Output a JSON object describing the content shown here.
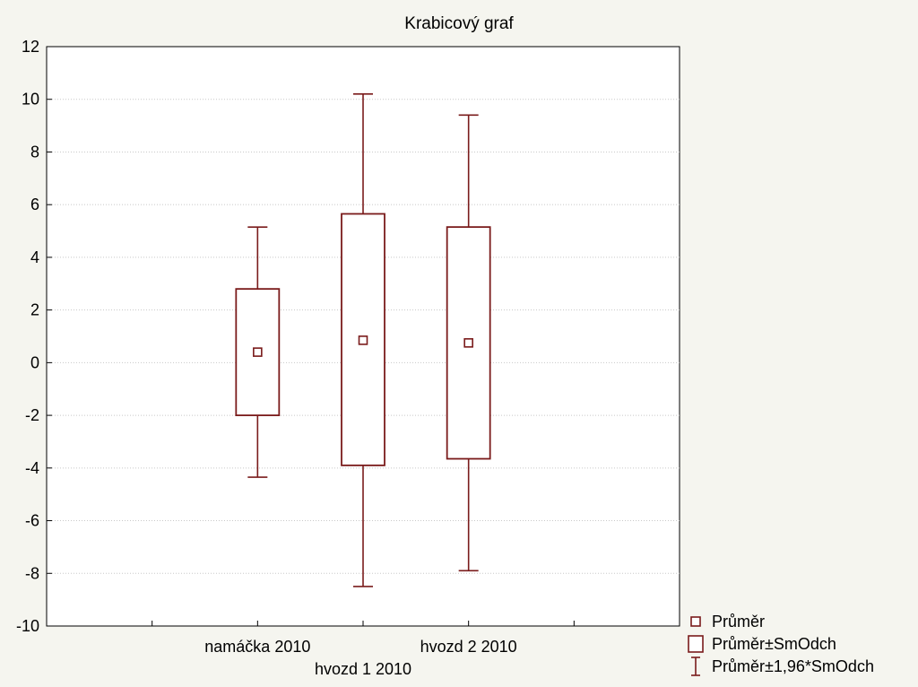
{
  "chart_data": {
    "type": "box",
    "title": "Krabicový graf",
    "xlabel": "",
    "ylabel": "",
    "ylim": [
      -10,
      12
    ],
    "yticks": [
      12,
      10,
      8,
      6,
      4,
      2,
      0,
      -2,
      -4,
      -6,
      -8,
      -10
    ],
    "grid": true,
    "categories": [
      "namáčka 2010",
      "hvozd 1 2010",
      "hvozd 2 2010"
    ],
    "series": [
      {
        "category": "namáčka 2010",
        "mean": 0.4,
        "sd_low": -2.0,
        "sd_high": 2.8,
        "ci_low": -4.35,
        "ci_high": 5.15
      },
      {
        "category": "hvozd 1 2010",
        "mean": 0.85,
        "sd_low": -3.9,
        "sd_high": 5.65,
        "ci_low": -8.5,
        "ci_high": 10.2
      },
      {
        "category": "hvozd 2 2010",
        "mean": 0.75,
        "sd_low": -3.65,
        "sd_high": 5.15,
        "ci_low": -7.9,
        "ci_high": 9.4
      }
    ],
    "legend": {
      "placement": "bottom-right",
      "items": [
        "Průměr",
        "Průměr±SmOdch",
        "Průměr±1,96*SmOdch"
      ]
    },
    "colors": {
      "box": "#7a1b1b",
      "plot_bg": "#ffffff",
      "page_bg": "#f5f5ef",
      "grid": "#c8c8c8"
    }
  }
}
